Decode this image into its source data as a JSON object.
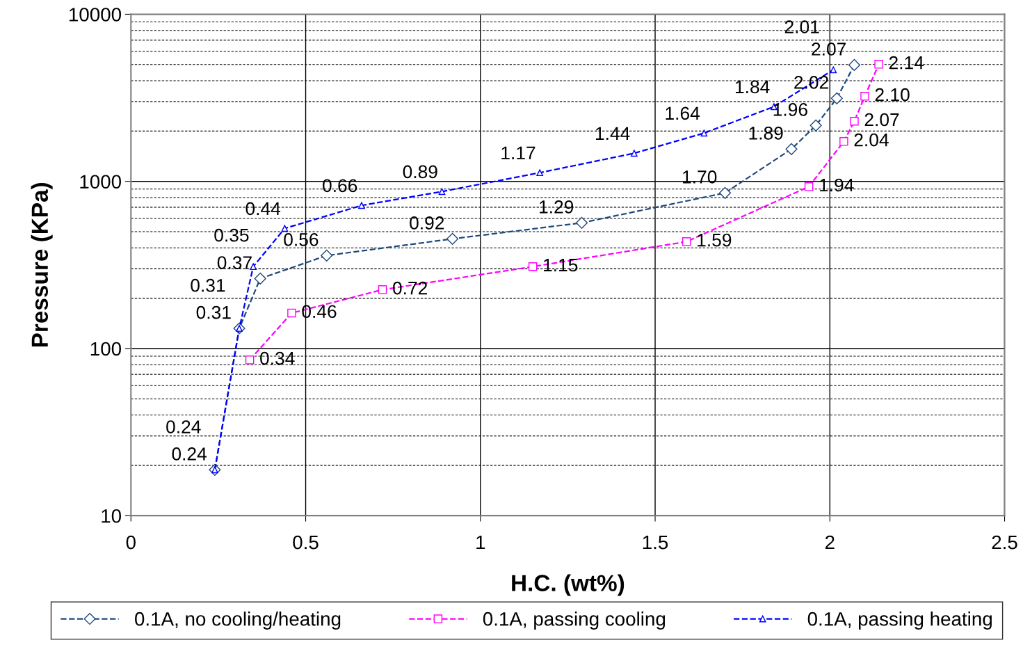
{
  "chart_data": {
    "type": "line",
    "xlabel": "H.C. (wt%)",
    "ylabel": "Pressure (KPa)",
    "log": "y",
    "xlim": [
      0,
      2.5
    ],
    "xticks": [
      0,
      0.5,
      1,
      1.5,
      2,
      2.5
    ],
    "ylim": [
      10,
      10000
    ],
    "yticks": [
      10,
      100,
      1000,
      10000
    ],
    "grid": true,
    "legend": "bottom",
    "line_style": "dashed",
    "series": [
      {
        "name": "0.1A, no cooling/heating",
        "color": "#1f497d",
        "marker": "diamond",
        "x": [
          0.24,
          0.31,
          0.37,
          0.56,
          0.92,
          1.29,
          1.7,
          1.89,
          1.96,
          2.02,
          2.07
        ],
        "values": [
          18.8,
          132,
          262,
          360,
          453,
          565,
          853,
          1560,
          2160,
          3140,
          4970
        ]
      },
      {
        "name": "0.1A, passing cooling",
        "color": "#ff00ff",
        "marker": "square",
        "x": [
          0.34,
          0.46,
          0.72,
          1.15,
          1.59,
          1.94,
          2.04,
          2.07,
          2.1,
          2.14
        ],
        "values": [
          85.5,
          163,
          225,
          309,
          436,
          930,
          1733,
          2290,
          3230,
          5020
        ]
      },
      {
        "name": "0.1A, passing heating",
        "color": "#0000ff",
        "marker": "triangle",
        "x": [
          0.24,
          0.31,
          0.35,
          0.44,
          0.66,
          0.89,
          1.17,
          1.44,
          1.64,
          1.84,
          2.01
        ],
        "values": [
          18.8,
          132,
          309,
          523,
          718,
          869,
          1127,
          1473,
          1944,
          2800,
          4650
        ]
      }
    ],
    "annotations": [
      {
        "text": "0.24",
        "x": 0.24,
        "y": 18.8
      },
      {
        "text": "0.31",
        "x": 0.31,
        "y": 132
      },
      {
        "text": "0.37",
        "x": 0.37,
        "y": 262
      },
      {
        "text": "0.56",
        "x": 0.56,
        "y": 360
      },
      {
        "text": "0.92",
        "x": 0.92,
        "y": 453
      },
      {
        "text": "1.29",
        "x": 1.29,
        "y": 565
      },
      {
        "text": "1.70",
        "x": 1.7,
        "y": 853
      },
      {
        "text": "1.89",
        "x": 1.89,
        "y": 1560
      },
      {
        "text": "1.96",
        "x": 1.96,
        "y": 2160
      },
      {
        "text": "2.02",
        "x": 2.02,
        "y": 3140
      },
      {
        "text": "2.07",
        "x": 2.07,
        "y": 4970
      },
      {
        "text": "0.34",
        "x": 0.34,
        "y": 85.5
      },
      {
        "text": "0.46",
        "x": 0.46,
        "y": 163
      },
      {
        "text": "0.72",
        "x": 0.72,
        "y": 225
      },
      {
        "text": "1.15",
        "x": 1.15,
        "y": 309
      },
      {
        "text": "1.59",
        "x": 1.59,
        "y": 436
      },
      {
        "text": "1.94",
        "x": 1.94,
        "y": 930
      },
      {
        "text": "2.04",
        "x": 2.04,
        "y": 1733
      },
      {
        "text": "2.07",
        "x": 2.07,
        "y": 2290
      },
      {
        "text": "2.10",
        "x": 2.1,
        "y": 3230
      },
      {
        "text": "2.14",
        "x": 2.14,
        "y": 5020
      },
      {
        "text": "0.24",
        "x": 0.24,
        "y": 18.8
      },
      {
        "text": "0.31",
        "x": 0.31,
        "y": 132
      },
      {
        "text": "0.35",
        "x": 0.35,
        "y": 309
      },
      {
        "text": "0.44",
        "x": 0.44,
        "y": 523
      },
      {
        "text": "0.66",
        "x": 0.66,
        "y": 718
      },
      {
        "text": "0.89",
        "x": 0.89,
        "y": 869
      },
      {
        "text": "1.17",
        "x": 1.17,
        "y": 1127
      },
      {
        "text": "1.44",
        "x": 1.44,
        "y": 1473
      },
      {
        "text": "1.64",
        "x": 1.64,
        "y": 1944
      },
      {
        "text": "1.84",
        "x": 1.84,
        "y": 2800
      },
      {
        "text": "2.01",
        "x": 2.01,
        "y": 4650
      }
    ]
  }
}
